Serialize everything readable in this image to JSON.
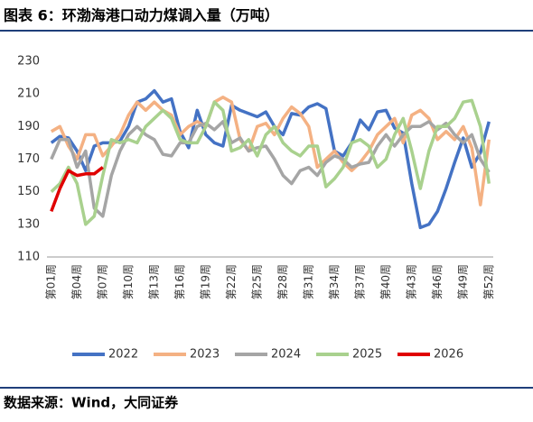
{
  "chart_data": {
    "type": "line",
    "title": "图表 6：环渤海港口动力煤调入量（万吨）",
    "source": "数据来源：Wind，大同证券",
    "categories": [
      "第01周",
      null,
      null,
      "第04周",
      null,
      null,
      "第07周",
      null,
      null,
      "第10周",
      null,
      null,
      "第13周",
      null,
      null,
      "第16周",
      null,
      null,
      "第19周",
      null,
      null,
      "第22周",
      null,
      null,
      "第25周",
      null,
      null,
      "第28周",
      null,
      null,
      "第31周",
      null,
      null,
      "第34周",
      null,
      null,
      "第37周",
      null,
      null,
      "第40周",
      null,
      null,
      "第43周",
      null,
      null,
      "第46周",
      null,
      null,
      "第49周",
      null,
      null,
      "第52周"
    ],
    "ylim": [
      110,
      230
    ],
    "yticks": [
      110,
      130,
      150,
      170,
      190,
      210,
      230
    ],
    "grid": false,
    "legend": "bottom",
    "series": [
      {
        "name": "2022",
        "color": "#4472c4",
        "values": [
          180,
          184,
          183,
          175,
          163,
          178,
          180,
          180,
          181,
          190,
          205,
          207,
          212,
          205,
          207,
          187,
          177,
          200,
          185,
          180,
          178,
          203,
          200,
          198,
          196,
          199,
          190,
          185,
          198,
          197,
          202,
          204,
          201,
          175,
          172,
          180,
          194,
          188,
          199,
          200,
          189,
          186,
          155,
          128,
          130,
          138,
          152,
          168,
          183,
          165,
          174,
          193
        ]
      },
      {
        "name": "2023",
        "color": "#f4b183",
        "values": [
          187,
          190,
          178,
          170,
          185,
          185,
          172,
          178,
          185,
          197,
          205,
          200,
          205,
          200,
          197,
          185,
          190,
          193,
          190,
          205,
          208,
          205,
          182,
          175,
          190,
          192,
          185,
          195,
          202,
          198,
          190,
          165,
          170,
          175,
          168,
          163,
          168,
          175,
          185,
          190,
          195,
          180,
          197,
          200,
          195,
          182,
          187,
          182,
          190,
          177,
          142,
          182
        ]
      },
      {
        "name": "2024",
        "color": "#a5a5a5",
        "values": [
          170,
          182,
          182,
          165,
          175,
          140,
          135,
          160,
          175,
          185,
          190,
          185,
          182,
          173,
          172,
          180,
          180,
          190,
          192,
          188,
          193,
          180,
          183,
          175,
          177,
          178,
          170,
          160,
          155,
          163,
          165,
          160,
          168,
          172,
          170,
          165,
          167,
          168,
          178,
          185,
          178,
          185,
          190,
          190,
          193,
          188,
          192,
          185,
          180,
          185,
          170,
          162
        ]
      },
      {
        "name": "2025",
        "color": "#a9d18e",
        "values": [
          150,
          155,
          165,
          155,
          130,
          135,
          160,
          182,
          180,
          182,
          180,
          190,
          195,
          200,
          195,
          182,
          180,
          180,
          190,
          205,
          200,
          175,
          177,
          182,
          172,
          185,
          190,
          180,
          175,
          172,
          178,
          178,
          153,
          158,
          165,
          180,
          182,
          178,
          165,
          170,
          185,
          195,
          175,
          152,
          175,
          190,
          190,
          195,
          205,
          206,
          190,
          155
        ]
      },
      {
        "name": "2026",
        "color": "#e00000",
        "values": [
          138,
          152,
          163,
          160,
          161,
          161,
          165,
          null,
          null,
          null,
          null,
          null,
          null,
          null,
          null,
          null,
          null,
          null,
          null,
          null,
          null,
          null,
          null,
          null,
          null,
          null,
          null,
          null,
          null,
          null,
          null,
          null,
          null,
          null,
          null,
          null,
          null,
          null,
          null,
          null,
          null,
          null,
          null,
          null,
          null,
          null,
          null,
          null,
          null,
          null,
          null,
          null
        ]
      }
    ]
  }
}
